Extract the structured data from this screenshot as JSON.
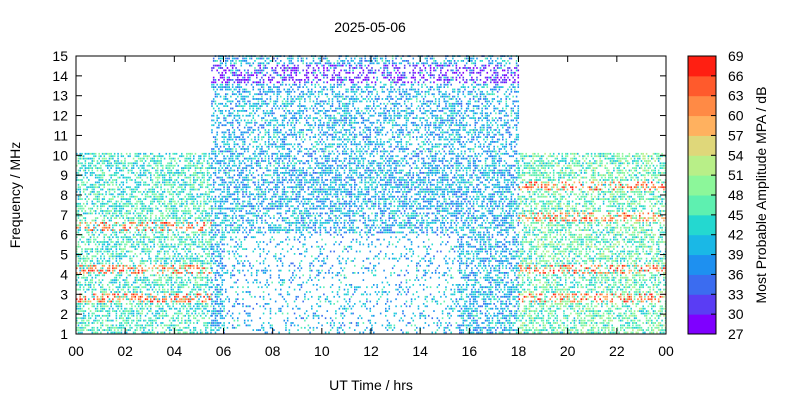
{
  "chart_data": {
    "type": "heatmap",
    "title": "2025-05-06",
    "xlabel": "UT Time / hrs",
    "ylabel": "Frequency / MHz",
    "colorbar_label": "Most Probable Amplitude MPA / dB",
    "xlim": [
      0,
      24
    ],
    "ylim": [
      1,
      15
    ],
    "x_ticks": [
      "00",
      "02",
      "04",
      "06",
      "08",
      "10",
      "12",
      "14",
      "16",
      "18",
      "20",
      "22",
      "00"
    ],
    "y_ticks": [
      "1",
      "2",
      "3",
      "4",
      "5",
      "6",
      "7",
      "8",
      "9",
      "10",
      "11",
      "12",
      "13",
      "14",
      "15"
    ],
    "colorbar_ticks": [
      "27",
      "30",
      "33",
      "36",
      "39",
      "42",
      "45",
      "48",
      "51",
      "54",
      "57",
      "60",
      "63",
      "66",
      "69"
    ],
    "colorbar_range": [
      27,
      69
    ],
    "colorbar_colors": [
      "#7f00ff",
      "#5a3df4",
      "#3b6cf0",
      "#1e90f0",
      "#1ab8e6",
      "#24d8d0",
      "#5ef0b0",
      "#8cf79a",
      "#b8ef88",
      "#dfd77a",
      "#ffb15f",
      "#ff8a45",
      "#ff5a2c",
      "#ff1f12"
    ],
    "data_coverage": [
      {
        "x_range": [
          0,
          5.5
        ],
        "y_range": [
          1,
          10
        ],
        "dominant_mpa": 45,
        "strong_bands_mhz": [
          2.7,
          4.2,
          6.3
        ]
      },
      {
        "x_range": [
          5.5,
          18
        ],
        "y_range": [
          1,
          15
        ],
        "dominant_mpa": 40,
        "strong_band_mhz": [
          13.5,
          14.5
        ],
        "strong_band_mpa": 30
      },
      {
        "x_range": [
          18,
          24
        ],
        "y_range": [
          1,
          10
        ],
        "dominant_mpa": 47,
        "strong_bands_mhz": [
          2.7,
          4.2,
          6.8,
          8.4
        ]
      }
    ],
    "grid": false
  }
}
